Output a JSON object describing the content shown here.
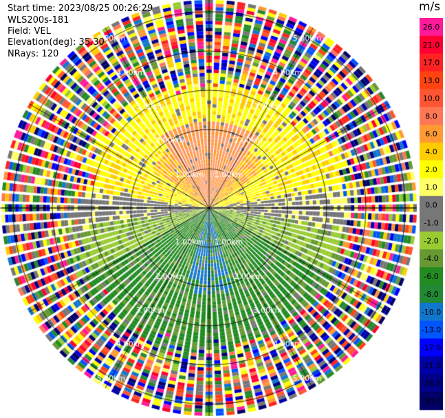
{
  "info": {
    "start_time": "Start time: 2023/08/25 00:26:29",
    "instrument": "WLS200s-181",
    "field": "Field: VEL",
    "elevation": "Elevation(deg): 35.30",
    "nrays": "NRays: 120"
  },
  "chart_data": {
    "type": "heatmap",
    "title": "",
    "unit": "m/s",
    "nrays": 120,
    "range_rings_km": [
      1.0,
      2.0,
      3.0,
      4.0,
      5.0
    ],
    "ring_labels": [
      "1.00km",
      "2.00km",
      "3.00km",
      "4.00km",
      "5.00km"
    ],
    "colorbar": {
      "ticks": [
        "26.0",
        "21.0",
        "17.0",
        "13.0",
        "10.0",
        "8.0",
        "6.0",
        "4.0",
        "2.0",
        "1.0",
        "0.0",
        "-1.0",
        "-2.0",
        "-4.0",
        "-6.0",
        "-8.0",
        "-10.0",
        "-13.0",
        "-17.0",
        "-21.0",
        "-26.0",
        "-30.0"
      ],
      "colors": [
        "#ff1a9a",
        "#ff0033",
        "#ff2222",
        "#ff4411",
        "#ff5533",
        "#ff7755",
        "#ff9933",
        "#ffcc00",
        "#ffff00",
        "#ffff66",
        "#777777",
        "#777777",
        "#99cc33",
        "#669933",
        "#228b22",
        "#228833",
        "#1177cc",
        "#0055ff",
        "#0000ff",
        "#0000aa",
        "#000088",
        "#000066"
      ]
    },
    "pattern": {
      "north_sector": "positive 1.0 to 8.0 m/s (yellow/orange)",
      "south_sector": "negative -2.0 to -10.0 m/s (green/blue)",
      "east_west": "near 0.0 m/s (grey)",
      "outer_range": "noise, all bins"
    }
  }
}
